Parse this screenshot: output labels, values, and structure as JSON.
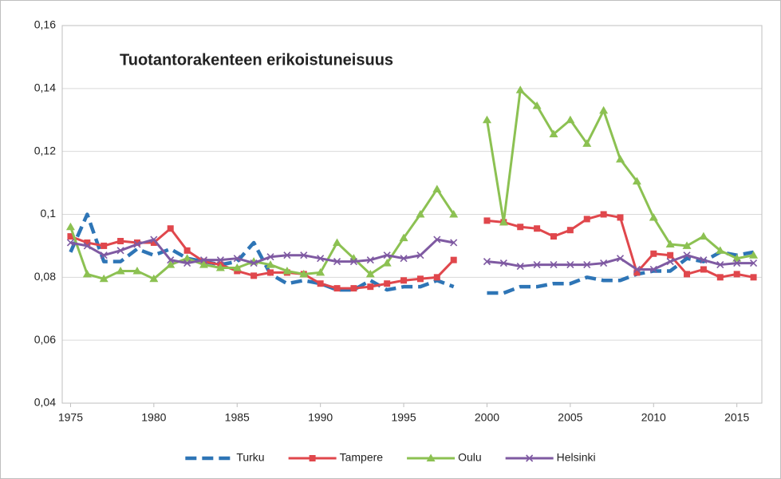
{
  "chart_data": {
    "type": "line",
    "title": "Tuotantorakenteen erikoistuneisuus",
    "x": [
      1975,
      1976,
      1977,
      1978,
      1979,
      1980,
      1981,
      1982,
      1983,
      1984,
      1985,
      1986,
      1987,
      1988,
      1989,
      1990,
      1991,
      1992,
      1993,
      1994,
      1995,
      1996,
      1997,
      1998,
      1999,
      2000,
      2001,
      2002,
      2003,
      2004,
      2005,
      2006,
      2007,
      2008,
      2009,
      2010,
      2011,
      2012,
      2013,
      2014,
      2015,
      2016
    ],
    "xlim": [
      1974.5,
      2016.5
    ],
    "xticks": [
      1975,
      1980,
      1985,
      1990,
      1995,
      2000,
      2005,
      2010,
      2015
    ],
    "ylim": [
      0.04,
      0.16
    ],
    "yticks": [
      {
        "value": 0.04,
        "label": "0,04"
      },
      {
        "value": 0.06,
        "label": "0,06"
      },
      {
        "value": 0.08,
        "label": "0,08"
      },
      {
        "value": 0.1,
        "label": "0,1"
      },
      {
        "value": 0.12,
        "label": "0,12"
      },
      {
        "value": 0.14,
        "label": "0,14"
      },
      {
        "value": 0.16,
        "label": "0,16"
      }
    ],
    "grid": true,
    "legend": "bottom",
    "series": [
      {
        "name": "Turku",
        "color": "#2e75b6",
        "line_style": "dashed",
        "marker": "none",
        "values": [
          0.088,
          0.1,
          0.085,
          0.085,
          0.089,
          0.087,
          0.089,
          0.086,
          0.085,
          0.084,
          0.085,
          0.091,
          0.081,
          0.078,
          0.079,
          0.078,
          0.076,
          0.076,
          0.079,
          0.076,
          0.077,
          0.077,
          0.079,
          0.077,
          null,
          0.075,
          0.075,
          0.077,
          0.077,
          0.078,
          0.078,
          0.08,
          0.079,
          0.079,
          0.081,
          0.082,
          0.082,
          0.086,
          0.085,
          0.088,
          0.087,
          0.088
        ]
      },
      {
        "name": "Tampere",
        "color": "#e0474c",
        "line_style": "solid",
        "marker": "square",
        "values": [
          0.093,
          0.091,
          0.09,
          0.0915,
          0.091,
          0.091,
          0.0955,
          0.0885,
          0.085,
          0.084,
          0.082,
          0.0805,
          0.0815,
          0.0815,
          0.081,
          0.078,
          0.0765,
          0.0765,
          0.077,
          0.078,
          0.079,
          0.0795,
          0.08,
          0.0855,
          null,
          0.098,
          0.0975,
          0.096,
          0.0955,
          0.093,
          0.095,
          0.0985,
          0.1,
          0.099,
          0.0815,
          0.0875,
          0.087,
          0.081,
          0.0825,
          0.08,
          0.081,
          0.08
        ]
      },
      {
        "name": "Oulu",
        "color": "#8cc152",
        "line_style": "solid",
        "marker": "triangle",
        "values": [
          0.096,
          0.081,
          0.0795,
          0.082,
          0.082,
          0.0795,
          0.084,
          0.086,
          0.084,
          0.083,
          0.083,
          0.085,
          0.084,
          0.082,
          0.081,
          0.0815,
          0.091,
          0.086,
          0.081,
          0.0845,
          0.0925,
          0.1,
          0.108,
          0.1,
          null,
          0.13,
          0.0975,
          0.1395,
          0.1345,
          0.1255,
          0.13,
          0.1225,
          0.133,
          0.1175,
          0.1105,
          0.099,
          0.0905,
          0.09,
          0.093,
          0.0885,
          0.086,
          0.087
        ]
      },
      {
        "name": "Helsinki",
        "color": "#7f5aa2",
        "line_style": "solid",
        "marker": "x",
        "values": [
          0.091,
          0.09,
          0.087,
          0.0885,
          0.0905,
          0.092,
          0.0855,
          0.0845,
          0.0855,
          0.0855,
          0.086,
          0.0845,
          0.0865,
          0.087,
          0.087,
          0.086,
          0.085,
          0.085,
          0.0855,
          0.087,
          0.086,
          0.087,
          0.092,
          0.091,
          null,
          0.085,
          0.0845,
          0.0835,
          0.084,
          0.084,
          0.084,
          0.084,
          0.0845,
          0.086,
          0.0825,
          0.0825,
          0.085,
          0.087,
          0.0855,
          0.084,
          0.0845,
          0.0845
        ]
      }
    ]
  }
}
